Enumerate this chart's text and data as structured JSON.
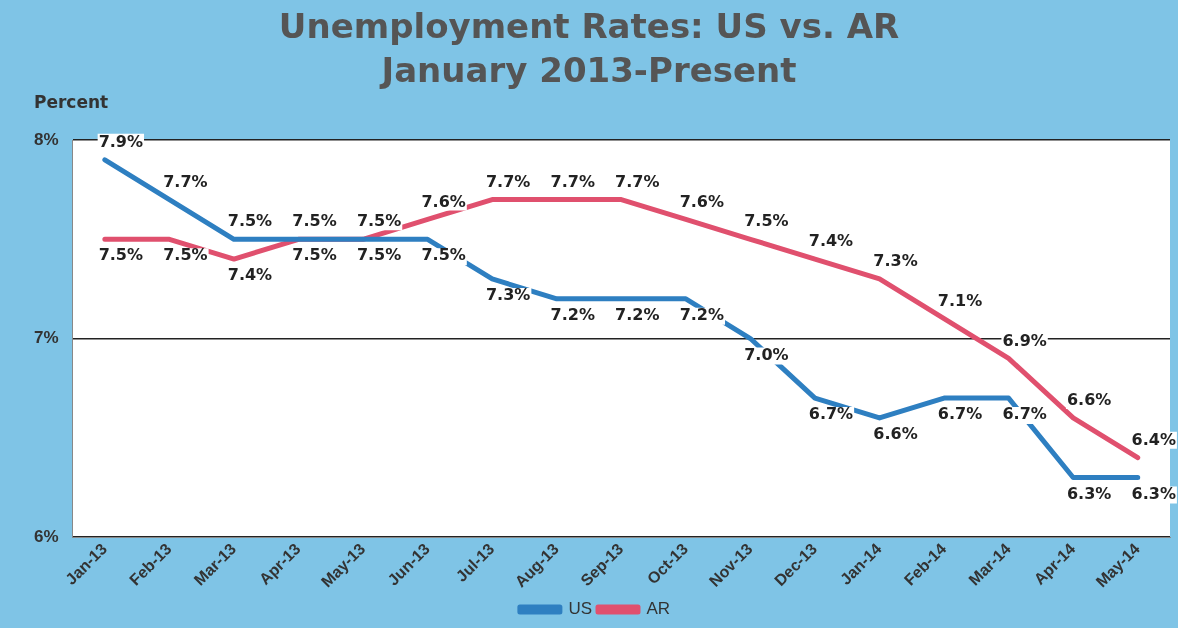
{
  "chart_data": {
    "type": "line",
    "title": "Unemployment Rates: US vs. AR\nJanuary 2013-Present",
    "ylabel": "Percent",
    "categories": [
      "Jan-13",
      "Feb-13",
      "Mar-13",
      "Apr-13",
      "May-13",
      "Jun-13",
      "Jul-13",
      "Aug-13",
      "Sep-13",
      "Oct-13",
      "Nov-13",
      "Dec-13",
      "Jan-14",
      "Feb-14",
      "Mar-14",
      "Apr-14",
      "May-14"
    ],
    "series": [
      {
        "name": "US",
        "color": "#2e7fc1",
        "values": [
          7.9,
          7.7,
          7.5,
          7.5,
          7.5,
          7.5,
          7.3,
          7.2,
          7.2,
          7.2,
          7.0,
          6.7,
          6.6,
          6.7,
          6.7,
          6.3,
          6.3
        ],
        "value_labels": [
          "7.9%",
          "7.7%",
          "7.5%",
          "7.5%",
          "7.5%",
          "7.5%",
          "7.3%",
          "7.2%",
          "7.2%",
          "7.2%",
          "7.0%",
          "6.7%",
          "6.6%",
          "6.7%",
          "6.7%",
          "6.3%",
          "6.3%"
        ]
      },
      {
        "name": "AR",
        "color": "#e0506e",
        "values": [
          7.5,
          7.5,
          7.4,
          7.5,
          7.5,
          7.6,
          7.7,
          7.7,
          7.7,
          7.6,
          7.5,
          7.4,
          7.3,
          7.1,
          6.9,
          6.6,
          6.4
        ],
        "value_labels": [
          "7.5%",
          "7.5%",
          "7.4%",
          "7.5%",
          "7.5%",
          "7.6%",
          "7.7%",
          "7.7%",
          "7.7%",
          "7.6%",
          "7.5%",
          "7.4%",
          "7.3%",
          "7.1%",
          "6.9%",
          "6.6%",
          "6.4%"
        ]
      }
    ],
    "ylim": [
      6,
      8
    ],
    "yticks": [
      {
        "value": 6,
        "label": "6%"
      },
      {
        "value": 7,
        "label": "7%"
      },
      {
        "value": 8,
        "label": "8%"
      }
    ],
    "grid": "y",
    "legend": "bottom",
    "marker": "none",
    "line_style": "solid"
  }
}
